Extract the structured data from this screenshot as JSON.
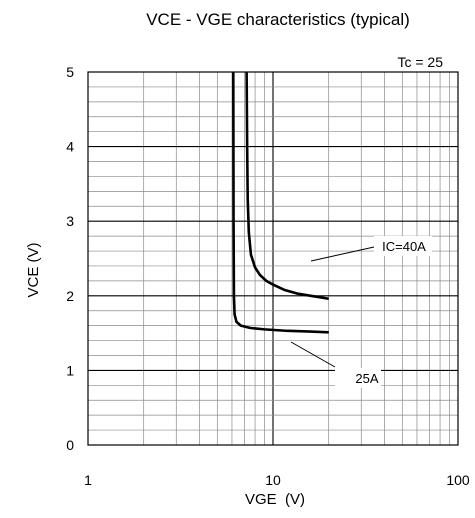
{
  "chart_data": {
    "type": "line",
    "title": "VCE - VGE characteristics (typical)",
    "condition_label": "Tc = 25",
    "xlabel": "VGE  (V)",
    "ylabel": "VCE (V)",
    "x_scale": "log",
    "xlim": [
      1,
      100
    ],
    "ylim": [
      0,
      5
    ],
    "x_ticks": [
      1,
      10,
      100
    ],
    "x_tick_labels": [
      "1",
      "10",
      "100"
    ],
    "y_ticks": [
      0,
      1,
      2,
      3,
      4,
      5
    ],
    "y_tick_labels": [
      "0",
      "1",
      "2",
      "3",
      "4",
      "5"
    ],
    "grid": true,
    "series": [
      {
        "name": "IC=40A",
        "points": [
          [
            7.2,
            5.0
          ],
          [
            7.25,
            4.0
          ],
          [
            7.3,
            3.3
          ],
          [
            7.4,
            2.85
          ],
          [
            7.6,
            2.55
          ],
          [
            8.0,
            2.38
          ],
          [
            8.5,
            2.28
          ],
          [
            9.2,
            2.2
          ],
          [
            10.0,
            2.15
          ],
          [
            11.5,
            2.08
          ],
          [
            13.5,
            2.03
          ],
          [
            16.0,
            2.0
          ],
          [
            18.0,
            1.98
          ],
          [
            20.0,
            1.96
          ]
        ]
      },
      {
        "name": "25A",
        "points": [
          [
            6.1,
            5.0
          ],
          [
            6.12,
            3.0
          ],
          [
            6.15,
            2.0
          ],
          [
            6.2,
            1.75
          ],
          [
            6.35,
            1.65
          ],
          [
            6.7,
            1.6
          ],
          [
            7.5,
            1.57
          ],
          [
            9.0,
            1.55
          ],
          [
            12.0,
            1.53
          ],
          [
            16.0,
            1.52
          ],
          [
            20.0,
            1.51
          ]
        ]
      }
    ],
    "annotations": [
      {
        "text": "IC=40A",
        "series": "IC=40A"
      },
      {
        "text": "25A",
        "series": "25A"
      }
    ]
  }
}
